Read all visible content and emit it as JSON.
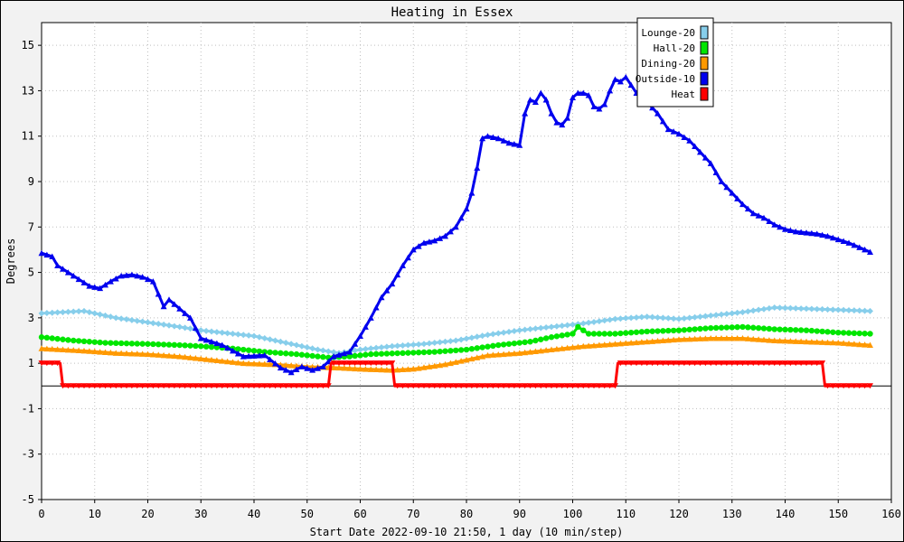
{
  "chart_data": {
    "type": "line",
    "title": "Heating in Essex",
    "xlabel": "Start Date 2022-09-10 21:50, 1 day (10 min/step)",
    "ylabel": "Degrees",
    "xlim": [
      0,
      160
    ],
    "ylim": [
      -5,
      16
    ],
    "x_ticks": [
      0,
      10,
      20,
      30,
      40,
      50,
      60,
      70,
      80,
      90,
      100,
      110,
      120,
      130,
      140,
      150,
      160
    ],
    "y_ticks": [
      -5,
      -3,
      -1,
      1,
      3,
      5,
      7,
      9,
      11,
      13,
      15
    ],
    "grid": true,
    "legend_position": "top-right",
    "series": [
      {
        "name": "Lounge-20",
        "color": "#87ceeb",
        "marker": "diamond",
        "points": [
          [
            0,
            3.2
          ],
          [
            8,
            3.3
          ],
          [
            14,
            3.0
          ],
          [
            20,
            2.8
          ],
          [
            26,
            2.6
          ],
          [
            30,
            2.45
          ],
          [
            40,
            2.2
          ],
          [
            46,
            1.9
          ],
          [
            52,
            1.6
          ],
          [
            56,
            1.45
          ],
          [
            60,
            1.6
          ],
          [
            66,
            1.75
          ],
          [
            72,
            1.85
          ],
          [
            78,
            2.0
          ],
          [
            84,
            2.25
          ],
          [
            90,
            2.45
          ],
          [
            96,
            2.6
          ],
          [
            102,
            2.75
          ],
          [
            108,
            2.95
          ],
          [
            114,
            3.05
          ],
          [
            120,
            2.95
          ],
          [
            126,
            3.1
          ],
          [
            132,
            3.25
          ],
          [
            138,
            3.45
          ],
          [
            144,
            3.4
          ],
          [
            150,
            3.35
          ],
          [
            156,
            3.3
          ]
        ]
      },
      {
        "name": "Hall-20",
        "color": "#00e600",
        "marker": "circle",
        "points": [
          [
            0,
            2.15
          ],
          [
            6,
            2.0
          ],
          [
            12,
            1.9
          ],
          [
            20,
            1.85
          ],
          [
            26,
            1.8
          ],
          [
            30,
            1.75
          ],
          [
            36,
            1.65
          ],
          [
            42,
            1.5
          ],
          [
            48,
            1.4
          ],
          [
            54,
            1.25
          ],
          [
            58,
            1.3
          ],
          [
            62,
            1.4
          ],
          [
            68,
            1.45
          ],
          [
            74,
            1.5
          ],
          [
            80,
            1.6
          ],
          [
            86,
            1.8
          ],
          [
            92,
            1.95
          ],
          [
            96,
            2.15
          ],
          [
            100,
            2.3
          ],
          [
            101,
            2.6
          ],
          [
            103,
            2.3
          ],
          [
            108,
            2.3
          ],
          [
            114,
            2.4
          ],
          [
            120,
            2.45
          ],
          [
            126,
            2.55
          ],
          [
            132,
            2.6
          ],
          [
            138,
            2.5
          ],
          [
            144,
            2.45
          ],
          [
            150,
            2.35
          ],
          [
            156,
            2.3
          ]
        ]
      },
      {
        "name": "Dining-20",
        "color": "#ff9900",
        "marker": "triangle",
        "points": [
          [
            0,
            1.65
          ],
          [
            8,
            1.55
          ],
          [
            14,
            1.45
          ],
          [
            20,
            1.4
          ],
          [
            26,
            1.3
          ],
          [
            32,
            1.15
          ],
          [
            38,
            1.0
          ],
          [
            44,
            0.95
          ],
          [
            50,
            0.85
          ],
          [
            56,
            0.8
          ],
          [
            60,
            0.75
          ],
          [
            66,
            0.7
          ],
          [
            70,
            0.75
          ],
          [
            76,
            0.95
          ],
          [
            80,
            1.15
          ],
          [
            84,
            1.35
          ],
          [
            90,
            1.45
          ],
          [
            96,
            1.6
          ],
          [
            102,
            1.75
          ],
          [
            108,
            1.85
          ],
          [
            114,
            1.95
          ],
          [
            120,
            2.05
          ],
          [
            126,
            2.1
          ],
          [
            132,
            2.1
          ],
          [
            138,
            2.0
          ],
          [
            144,
            1.95
          ],
          [
            150,
            1.9
          ],
          [
            156,
            1.8
          ]
        ]
      },
      {
        "name": "Outside-10",
        "color": "#0000ee",
        "marker": "triangle",
        "points": [
          [
            0,
            5.85
          ],
          [
            2,
            5.7
          ],
          [
            3,
            5.3
          ],
          [
            5,
            5.0
          ],
          [
            7,
            4.7
          ],
          [
            9,
            4.4
          ],
          [
            11,
            4.3
          ],
          [
            13,
            4.6
          ],
          [
            15,
            4.85
          ],
          [
            17,
            4.9
          ],
          [
            19,
            4.8
          ],
          [
            21,
            4.6
          ],
          [
            23,
            3.5
          ],
          [
            24,
            3.8
          ],
          [
            26,
            3.4
          ],
          [
            28,
            3.0
          ],
          [
            30,
            2.1
          ],
          [
            34,
            1.8
          ],
          [
            38,
            1.3
          ],
          [
            42,
            1.35
          ],
          [
            45,
            0.8
          ],
          [
            47,
            0.6
          ],
          [
            49,
            0.85
          ],
          [
            51,
            0.7
          ],
          [
            53,
            0.85
          ],
          [
            55,
            1.3
          ],
          [
            58,
            1.5
          ],
          [
            60,
            2.2
          ],
          [
            62,
            3.0
          ],
          [
            64,
            3.9
          ],
          [
            66,
            4.5
          ],
          [
            68,
            5.3
          ],
          [
            70,
            6.0
          ],
          [
            72,
            6.3
          ],
          [
            74,
            6.4
          ],
          [
            76,
            6.6
          ],
          [
            78,
            7.0
          ],
          [
            80,
            7.8
          ],
          [
            81,
            8.5
          ],
          [
            82,
            9.6
          ],
          [
            83,
            10.9
          ],
          [
            84,
            11.0
          ],
          [
            86,
            10.9
          ],
          [
            88,
            10.7
          ],
          [
            90,
            10.6
          ],
          [
            91,
            12.0
          ],
          [
            92,
            12.6
          ],
          [
            93,
            12.5
          ],
          [
            94,
            12.9
          ],
          [
            95,
            12.6
          ],
          [
            96,
            12.0
          ],
          [
            97,
            11.6
          ],
          [
            98,
            11.5
          ],
          [
            99,
            11.8
          ],
          [
            100,
            12.7
          ],
          [
            101,
            12.9
          ],
          [
            102,
            12.9
          ],
          [
            103,
            12.8
          ],
          [
            104,
            12.3
          ],
          [
            105,
            12.2
          ],
          [
            106,
            12.4
          ],
          [
            107,
            13.0
          ],
          [
            108,
            13.5
          ],
          [
            109,
            13.4
          ],
          [
            110,
            13.6
          ],
          [
            112,
            12.9
          ],
          [
            114,
            12.5
          ],
          [
            116,
            12.0
          ],
          [
            118,
            11.3
          ],
          [
            120,
            11.1
          ],
          [
            122,
            10.8
          ],
          [
            124,
            10.3
          ],
          [
            126,
            9.8
          ],
          [
            128,
            9.0
          ],
          [
            130,
            8.5
          ],
          [
            132,
            8.0
          ],
          [
            134,
            7.6
          ],
          [
            136,
            7.4
          ],
          [
            138,
            7.1
          ],
          [
            140,
            6.9
          ],
          [
            142,
            6.8
          ],
          [
            144,
            6.75
          ],
          [
            146,
            6.7
          ],
          [
            148,
            6.6
          ],
          [
            150,
            6.45
          ],
          [
            152,
            6.3
          ],
          [
            154,
            6.1
          ],
          [
            156,
            5.9
          ]
        ]
      },
      {
        "name": "Heat",
        "color": "#ff0000",
        "marker": "triangle-down",
        "points": [
          [
            0,
            1
          ],
          [
            3.5,
            1
          ],
          [
            4,
            0
          ],
          [
            54,
            0
          ],
          [
            54.5,
            1
          ],
          [
            66,
            1
          ],
          [
            66.5,
            0
          ],
          [
            108,
            0
          ],
          [
            108.5,
            1
          ],
          [
            147,
            1
          ],
          [
            147.5,
            0
          ],
          [
            156,
            0
          ]
        ]
      }
    ]
  }
}
